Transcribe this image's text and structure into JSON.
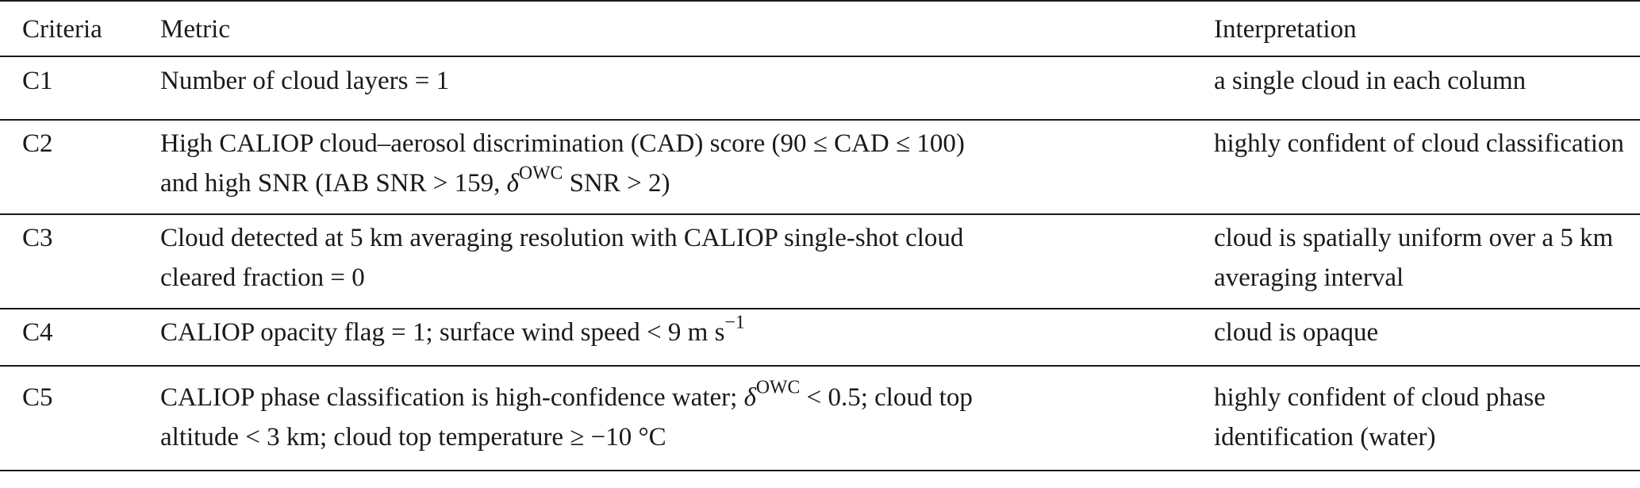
{
  "headers": {
    "criteria": "Criteria",
    "metric": "Metric",
    "interpretation": "Interpretation"
  },
  "rows": [
    {
      "id": "C1",
      "metric_line1": "Number of cloud layers = 1",
      "metric_line2": "",
      "interp": "a single cloud in each column"
    },
    {
      "id": "C2",
      "metric_line1": "High CALIOP cloud–aerosol discrimination (CAD) score (90 ≤ CAD ≤ 100)",
      "metric_line2a": "and high SNR (IAB SNR > 159, ",
      "metric_delta": "δ",
      "metric_sup": "OWC",
      "metric_line2b": " SNR > 2)",
      "interp": "highly confident of cloud classification"
    },
    {
      "id": "C3",
      "metric_line1": "Cloud detected at 5 km averaging resolution with CALIOP single-shot cloud",
      "metric_line2": "cleared fraction = 0",
      "interp": "cloud is spatially uniform over a 5 km averaging interval"
    },
    {
      "id": "C4",
      "metric_a": "CALIOP opacity flag = 1; surface wind speed < 9 m s",
      "metric_sup": "−1",
      "interp": "cloud is opaque"
    },
    {
      "id": "C5",
      "metric_a": "CALIOP phase classification is high-confidence water; ",
      "metric_delta": "δ",
      "metric_sup": "OWC",
      "metric_b": " < 0.5; cloud top",
      "metric_line2": "altitude < 3 km; cloud top temperature ≥ −10 °C",
      "interp": "highly confident of cloud phase identification (water)"
    }
  ]
}
